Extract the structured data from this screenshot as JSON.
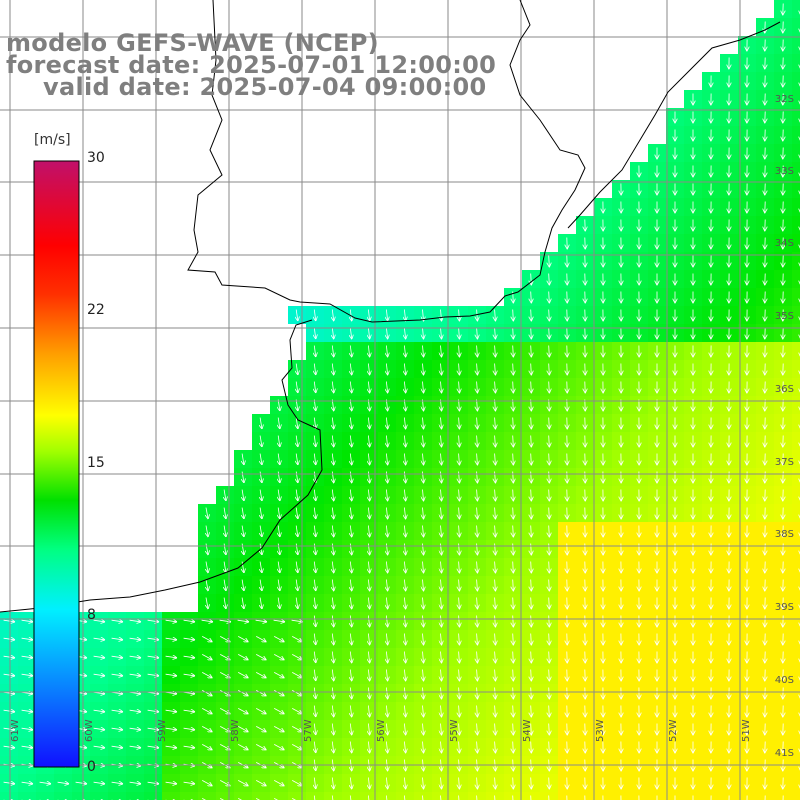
{
  "title": {
    "line1": "modelo GEFS-WAVE (NCEP)",
    "line2": "forecast date: 2025-07-01 12:00:00",
    "line3": "valid date: 2025-07-04 09:00:00"
  },
  "colorbar": {
    "unit": "[m/s]",
    "ticks": [
      "30",
      "22",
      "15",
      "8",
      "0"
    ]
  },
  "lat_labels": [
    "32S",
    "33S",
    "34S",
    "35S",
    "36S",
    "37S",
    "38S",
    "39S",
    "40S",
    "41S"
  ],
  "lon_labels": [
    "61W",
    "60W",
    "59W",
    "58W",
    "57W",
    "56W",
    "55W",
    "54W",
    "53W",
    "52W",
    "51W"
  ],
  "colors": {
    "land": "#ffffff",
    "grid": "#8a8a8a",
    "coast": "#000000",
    "arrow": "#ffffff",
    "title": "#7f7f7f"
  }
}
